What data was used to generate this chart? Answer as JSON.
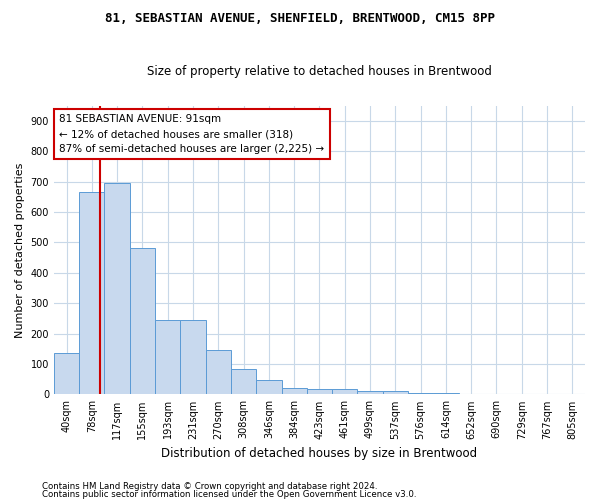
{
  "title": "81, SEBASTIAN AVENUE, SHENFIELD, BRENTWOOD, CM15 8PP",
  "subtitle": "Size of property relative to detached houses in Brentwood",
  "xlabel": "Distribution of detached houses by size in Brentwood",
  "ylabel": "Number of detached properties",
  "bar_color": "#c8d9ee",
  "bar_edge_color": "#5b9bd5",
  "categories": [
    "40sqm",
    "78sqm",
    "117sqm",
    "155sqm",
    "193sqm",
    "231sqm",
    "270sqm",
    "308sqm",
    "346sqm",
    "384sqm",
    "423sqm",
    "461sqm",
    "499sqm",
    "537sqm",
    "576sqm",
    "614sqm",
    "652sqm",
    "690sqm",
    "729sqm",
    "767sqm",
    "805sqm"
  ],
  "values": [
    135,
    665,
    695,
    480,
    245,
    245,
    147,
    83,
    47,
    22,
    17,
    17,
    10,
    10,
    5,
    5,
    2,
    2,
    1,
    1,
    1
  ],
  "ylim": [
    0,
    950
  ],
  "yticks": [
    0,
    100,
    200,
    300,
    400,
    500,
    600,
    700,
    800,
    900
  ],
  "annotation_text": "81 SEBASTIAN AVENUE: 91sqm\n← 12% of detached houses are smaller (318)\n87% of semi-detached houses are larger (2,225) →",
  "annotation_box_color": "#ffffff",
  "annotation_border_color": "#cc0000",
  "vline_color": "#cc0000",
  "background_color": "#ffffff",
  "grid_color": "#c8d8e8",
  "footer_line1": "Contains HM Land Registry data © Crown copyright and database right 2024.",
  "footer_line2": "Contains public sector information licensed under the Open Government Licence v3.0."
}
